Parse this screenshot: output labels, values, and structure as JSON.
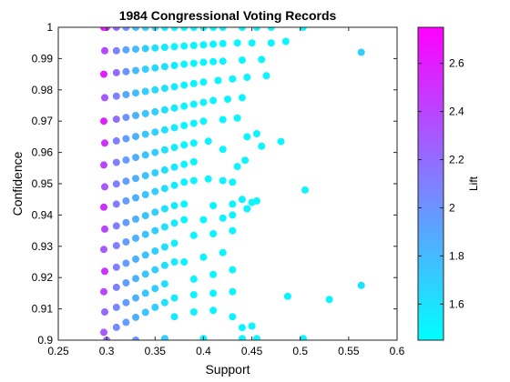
{
  "chart_data": {
    "type": "scatter",
    "title": "1984 Congressional Voting Records",
    "xlabel": "Support",
    "ylabel": "Confidence",
    "xlim": [
      0.25,
      0.6
    ],
    "ylim": [
      0.9,
      1.0
    ],
    "xticks": [
      "0.25",
      "0.3",
      "0.35",
      "0.4",
      "0.45",
      "0.5",
      "0.55",
      "0.6"
    ],
    "yticks": [
      "0.9",
      "0.91",
      "0.92",
      "0.93",
      "0.94",
      "0.95",
      "0.96",
      "0.97",
      "0.98",
      "0.99",
      "1"
    ],
    "grid": false,
    "colorbar": {
      "label": "Lift",
      "range": [
        1.45,
        2.75
      ],
      "ticks": [
        "1.6",
        "1.8",
        "2",
        "2.2",
        "2.4",
        "2.6"
      ],
      "colormap": "cool",
      "color_low": "#00ffff",
      "color_high": "#ff00ff"
    },
    "points": [
      {
        "x": 0.297,
        "y": 1.0,
        "lift": 2.7
      },
      {
        "x": 0.3,
        "y": 1.0,
        "lift": 2.5
      },
      {
        "x": 0.31,
        "y": 1.0,
        "lift": 2.2
      },
      {
        "x": 0.32,
        "y": 1.0,
        "lift": 2.0
      },
      {
        "x": 0.33,
        "y": 1.0,
        "lift": 1.8
      },
      {
        "x": 0.34,
        "y": 1.0,
        "lift": 1.7
      },
      {
        "x": 0.35,
        "y": 1.0,
        "lift": 1.6
      },
      {
        "x": 0.36,
        "y": 1.0,
        "lift": 1.55
      },
      {
        "x": 0.37,
        "y": 1.0,
        "lift": 1.5
      },
      {
        "x": 0.38,
        "y": 1.0,
        "lift": 1.5
      },
      {
        "x": 0.39,
        "y": 1.0,
        "lift": 1.5
      },
      {
        "x": 0.4,
        "y": 1.0,
        "lift": 1.5
      },
      {
        "x": 0.41,
        "y": 1.0,
        "lift": 1.5
      },
      {
        "x": 0.42,
        "y": 1.0,
        "lift": 1.5
      },
      {
        "x": 0.44,
        "y": 1.0,
        "lift": 1.5
      },
      {
        "x": 0.455,
        "y": 1.0,
        "lift": 1.5
      },
      {
        "x": 0.47,
        "y": 1.0,
        "lift": 1.5
      },
      {
        "x": 0.503,
        "y": 1.0,
        "lift": 1.5
      },
      {
        "x": 0.298,
        "y": 0.9925,
        "lift": 2.4
      },
      {
        "x": 0.31,
        "y": 0.9925,
        "lift": 2.1
      },
      {
        "x": 0.32,
        "y": 0.9928,
        "lift": 1.9
      },
      {
        "x": 0.33,
        "y": 0.993,
        "lift": 1.8
      },
      {
        "x": 0.34,
        "y": 0.9932,
        "lift": 1.7
      },
      {
        "x": 0.35,
        "y": 0.9934,
        "lift": 1.6
      },
      {
        "x": 0.36,
        "y": 0.9936,
        "lift": 1.55
      },
      {
        "x": 0.37,
        "y": 0.9938,
        "lift": 1.5
      },
      {
        "x": 0.38,
        "y": 0.994,
        "lift": 1.5
      },
      {
        "x": 0.39,
        "y": 0.9942,
        "lift": 1.5
      },
      {
        "x": 0.4,
        "y": 0.9944,
        "lift": 1.5
      },
      {
        "x": 0.41,
        "y": 0.9946,
        "lift": 1.5
      },
      {
        "x": 0.42,
        "y": 0.9948,
        "lift": 1.5
      },
      {
        "x": 0.435,
        "y": 0.995,
        "lift": 1.5
      },
      {
        "x": 0.45,
        "y": 0.995,
        "lift": 1.5
      },
      {
        "x": 0.47,
        "y": 0.995,
        "lift": 1.5
      },
      {
        "x": 0.485,
        "y": 0.9955,
        "lift": 1.5
      },
      {
        "x": 0.563,
        "y": 0.992,
        "lift": 1.7
      },
      {
        "x": 0.297,
        "y": 0.985,
        "lift": 2.6
      },
      {
        "x": 0.31,
        "y": 0.9855,
        "lift": 2.2
      },
      {
        "x": 0.32,
        "y": 0.9858,
        "lift": 2.0
      },
      {
        "x": 0.33,
        "y": 0.9862,
        "lift": 1.8
      },
      {
        "x": 0.34,
        "y": 0.9866,
        "lift": 1.7
      },
      {
        "x": 0.35,
        "y": 0.987,
        "lift": 1.65
      },
      {
        "x": 0.36,
        "y": 0.9874,
        "lift": 1.6
      },
      {
        "x": 0.37,
        "y": 0.9878,
        "lift": 1.55
      },
      {
        "x": 0.38,
        "y": 0.9882,
        "lift": 1.5
      },
      {
        "x": 0.39,
        "y": 0.9885,
        "lift": 1.5
      },
      {
        "x": 0.4,
        "y": 0.9888,
        "lift": 1.5
      },
      {
        "x": 0.41,
        "y": 0.989,
        "lift": 1.5
      },
      {
        "x": 0.42,
        "y": 0.9892,
        "lift": 1.5
      },
      {
        "x": 0.44,
        "y": 0.9895,
        "lift": 1.5
      },
      {
        "x": 0.46,
        "y": 0.9897,
        "lift": 1.5
      },
      {
        "x": 0.298,
        "y": 0.9775,
        "lift": 2.3
      },
      {
        "x": 0.31,
        "y": 0.978,
        "lift": 2.1
      },
      {
        "x": 0.32,
        "y": 0.9785,
        "lift": 1.9
      },
      {
        "x": 0.33,
        "y": 0.979,
        "lift": 1.8
      },
      {
        "x": 0.34,
        "y": 0.9795,
        "lift": 1.7
      },
      {
        "x": 0.35,
        "y": 0.98,
        "lift": 1.65
      },
      {
        "x": 0.36,
        "y": 0.9805,
        "lift": 1.6
      },
      {
        "x": 0.37,
        "y": 0.981,
        "lift": 1.55
      },
      {
        "x": 0.38,
        "y": 0.9815,
        "lift": 1.5
      },
      {
        "x": 0.39,
        "y": 0.982,
        "lift": 1.5
      },
      {
        "x": 0.4,
        "y": 0.9825,
        "lift": 1.5
      },
      {
        "x": 0.415,
        "y": 0.983,
        "lift": 1.5
      },
      {
        "x": 0.43,
        "y": 0.9835,
        "lift": 1.5
      },
      {
        "x": 0.445,
        "y": 0.984,
        "lift": 1.5
      },
      {
        "x": 0.465,
        "y": 0.9845,
        "lift": 1.5
      },
      {
        "x": 0.297,
        "y": 0.97,
        "lift": 2.6
      },
      {
        "x": 0.31,
        "y": 0.9706,
        "lift": 2.2
      },
      {
        "x": 0.32,
        "y": 0.9712,
        "lift": 2.0
      },
      {
        "x": 0.33,
        "y": 0.9718,
        "lift": 1.85
      },
      {
        "x": 0.34,
        "y": 0.9724,
        "lift": 1.75
      },
      {
        "x": 0.35,
        "y": 0.973,
        "lift": 1.7
      },
      {
        "x": 0.36,
        "y": 0.9736,
        "lift": 1.6
      },
      {
        "x": 0.37,
        "y": 0.9742,
        "lift": 1.55
      },
      {
        "x": 0.38,
        "y": 0.9748,
        "lift": 1.5
      },
      {
        "x": 0.39,
        "y": 0.9754,
        "lift": 1.5
      },
      {
        "x": 0.4,
        "y": 0.976,
        "lift": 1.5
      },
      {
        "x": 0.41,
        "y": 0.9766,
        "lift": 1.5
      },
      {
        "x": 0.425,
        "y": 0.977,
        "lift": 1.5
      },
      {
        "x": 0.44,
        "y": 0.9775,
        "lift": 1.5
      },
      {
        "x": 0.298,
        "y": 0.963,
        "lift": 2.5
      },
      {
        "x": 0.31,
        "y": 0.9637,
        "lift": 2.1
      },
      {
        "x": 0.32,
        "y": 0.9644,
        "lift": 1.95
      },
      {
        "x": 0.33,
        "y": 0.9651,
        "lift": 1.85
      },
      {
        "x": 0.34,
        "y": 0.9658,
        "lift": 1.75
      },
      {
        "x": 0.35,
        "y": 0.9665,
        "lift": 1.7
      },
      {
        "x": 0.36,
        "y": 0.9672,
        "lift": 1.6
      },
      {
        "x": 0.37,
        "y": 0.9679,
        "lift": 1.55
      },
      {
        "x": 0.38,
        "y": 0.9686,
        "lift": 1.5
      },
      {
        "x": 0.39,
        "y": 0.9693,
        "lift": 1.5
      },
      {
        "x": 0.4,
        "y": 0.97,
        "lift": 1.5
      },
      {
        "x": 0.42,
        "y": 0.9705,
        "lift": 1.5
      },
      {
        "x": 0.435,
        "y": 0.971,
        "lift": 1.5
      },
      {
        "x": 0.455,
        "y": 0.966,
        "lift": 1.5
      },
      {
        "x": 0.445,
        "y": 0.965,
        "lift": 1.5
      },
      {
        "x": 0.46,
        "y": 0.962,
        "lift": 1.5
      },
      {
        "x": 0.297,
        "y": 0.956,
        "lift": 2.4
      },
      {
        "x": 0.31,
        "y": 0.9568,
        "lift": 2.1
      },
      {
        "x": 0.32,
        "y": 0.9576,
        "lift": 1.95
      },
      {
        "x": 0.33,
        "y": 0.9584,
        "lift": 1.85
      },
      {
        "x": 0.34,
        "y": 0.9592,
        "lift": 1.75
      },
      {
        "x": 0.35,
        "y": 0.96,
        "lift": 1.7
      },
      {
        "x": 0.36,
        "y": 0.9608,
        "lift": 1.6
      },
      {
        "x": 0.37,
        "y": 0.9616,
        "lift": 1.55
      },
      {
        "x": 0.38,
        "y": 0.9624,
        "lift": 1.5
      },
      {
        "x": 0.39,
        "y": 0.963,
        "lift": 1.5
      },
      {
        "x": 0.405,
        "y": 0.9636,
        "lift": 1.5
      },
      {
        "x": 0.42,
        "y": 0.961,
        "lift": 1.5
      },
      {
        "x": 0.435,
        "y": 0.9555,
        "lift": 1.5
      },
      {
        "x": 0.443,
        "y": 0.9575,
        "lift": 1.5
      },
      {
        "x": 0.48,
        "y": 0.9635,
        "lift": 1.5
      },
      {
        "x": 0.298,
        "y": 0.949,
        "lift": 2.3
      },
      {
        "x": 0.31,
        "y": 0.9499,
        "lift": 2.1
      },
      {
        "x": 0.32,
        "y": 0.9508,
        "lift": 1.95
      },
      {
        "x": 0.33,
        "y": 0.9517,
        "lift": 1.85
      },
      {
        "x": 0.34,
        "y": 0.9526,
        "lift": 1.75
      },
      {
        "x": 0.35,
        "y": 0.9535,
        "lift": 1.7
      },
      {
        "x": 0.36,
        "y": 0.9544,
        "lift": 1.6
      },
      {
        "x": 0.37,
        "y": 0.9553,
        "lift": 1.55
      },
      {
        "x": 0.38,
        "y": 0.9562,
        "lift": 1.5
      },
      {
        "x": 0.39,
        "y": 0.957,
        "lift": 1.5
      },
      {
        "x": 0.405,
        "y": 0.9515,
        "lift": 1.5
      },
      {
        "x": 0.42,
        "y": 0.951,
        "lift": 1.5
      },
      {
        "x": 0.43,
        "y": 0.9505,
        "lift": 1.5
      },
      {
        "x": 0.297,
        "y": 0.9425,
        "lift": 2.5
      },
      {
        "x": 0.31,
        "y": 0.9435,
        "lift": 2.1
      },
      {
        "x": 0.32,
        "y": 0.9445,
        "lift": 1.95
      },
      {
        "x": 0.33,
        "y": 0.9455,
        "lift": 1.85
      },
      {
        "x": 0.34,
        "y": 0.9465,
        "lift": 1.75
      },
      {
        "x": 0.35,
        "y": 0.9475,
        "lift": 1.7
      },
      {
        "x": 0.36,
        "y": 0.9485,
        "lift": 1.6
      },
      {
        "x": 0.37,
        "y": 0.9495,
        "lift": 1.55
      },
      {
        "x": 0.38,
        "y": 0.9505,
        "lift": 1.5
      },
      {
        "x": 0.39,
        "y": 0.951,
        "lift": 1.5
      },
      {
        "x": 0.41,
        "y": 0.943,
        "lift": 1.5
      },
      {
        "x": 0.43,
        "y": 0.9435,
        "lift": 1.5
      },
      {
        "x": 0.44,
        "y": 0.945,
        "lift": 1.5
      },
      {
        "x": 0.45,
        "y": 0.944,
        "lift": 1.5
      },
      {
        "x": 0.455,
        "y": 0.9445,
        "lift": 1.5
      },
      {
        "x": 0.505,
        "y": 0.948,
        "lift": 1.5
      },
      {
        "x": 0.298,
        "y": 0.9355,
        "lift": 2.4
      },
      {
        "x": 0.31,
        "y": 0.9365,
        "lift": 2.1
      },
      {
        "x": 0.32,
        "y": 0.9376,
        "lift": 1.95
      },
      {
        "x": 0.33,
        "y": 0.9387,
        "lift": 1.85
      },
      {
        "x": 0.34,
        "y": 0.9398,
        "lift": 1.75
      },
      {
        "x": 0.35,
        "y": 0.9409,
        "lift": 1.7
      },
      {
        "x": 0.36,
        "y": 0.942,
        "lift": 1.6
      },
      {
        "x": 0.37,
        "y": 0.943,
        "lift": 1.55
      },
      {
        "x": 0.38,
        "y": 0.9435,
        "lift": 1.5
      },
      {
        "x": 0.4,
        "y": 0.9385,
        "lift": 1.5
      },
      {
        "x": 0.42,
        "y": 0.939,
        "lift": 1.5
      },
      {
        "x": 0.43,
        "y": 0.94,
        "lift": 1.5
      },
      {
        "x": 0.445,
        "y": 0.942,
        "lift": 1.5
      },
      {
        "x": 0.297,
        "y": 0.929,
        "lift": 2.3
      },
      {
        "x": 0.31,
        "y": 0.9302,
        "lift": 2.1
      },
      {
        "x": 0.32,
        "y": 0.9314,
        "lift": 1.95
      },
      {
        "x": 0.33,
        "y": 0.9326,
        "lift": 1.85
      },
      {
        "x": 0.34,
        "y": 0.9338,
        "lift": 1.75
      },
      {
        "x": 0.35,
        "y": 0.935,
        "lift": 1.7
      },
      {
        "x": 0.36,
        "y": 0.9362,
        "lift": 1.6
      },
      {
        "x": 0.37,
        "y": 0.9374,
        "lift": 1.55
      },
      {
        "x": 0.38,
        "y": 0.9385,
        "lift": 1.5
      },
      {
        "x": 0.39,
        "y": 0.9335,
        "lift": 1.5
      },
      {
        "x": 0.41,
        "y": 0.934,
        "lift": 1.5
      },
      {
        "x": 0.43,
        "y": 0.935,
        "lift": 1.5
      },
      {
        "x": 0.298,
        "y": 0.922,
        "lift": 2.5
      },
      {
        "x": 0.31,
        "y": 0.9233,
        "lift": 2.1
      },
      {
        "x": 0.32,
        "y": 0.9246,
        "lift": 1.95
      },
      {
        "x": 0.33,
        "y": 0.9259,
        "lift": 1.85
      },
      {
        "x": 0.34,
        "y": 0.9272,
        "lift": 1.75
      },
      {
        "x": 0.35,
        "y": 0.9285,
        "lift": 1.7
      },
      {
        "x": 0.36,
        "y": 0.9298,
        "lift": 1.6
      },
      {
        "x": 0.37,
        "y": 0.931,
        "lift": 1.55
      },
      {
        "x": 0.38,
        "y": 0.925,
        "lift": 1.5
      },
      {
        "x": 0.4,
        "y": 0.9265,
        "lift": 1.5
      },
      {
        "x": 0.42,
        "y": 0.928,
        "lift": 1.5
      },
      {
        "x": 0.297,
        "y": 0.9155,
        "lift": 2.4
      },
      {
        "x": 0.31,
        "y": 0.9169,
        "lift": 2.1
      },
      {
        "x": 0.32,
        "y": 0.9183,
        "lift": 1.95
      },
      {
        "x": 0.33,
        "y": 0.9197,
        "lift": 1.85
      },
      {
        "x": 0.34,
        "y": 0.9211,
        "lift": 1.75
      },
      {
        "x": 0.35,
        "y": 0.9225,
        "lift": 1.7
      },
      {
        "x": 0.36,
        "y": 0.9239,
        "lift": 1.6
      },
      {
        "x": 0.37,
        "y": 0.925,
        "lift": 1.55
      },
      {
        "x": 0.39,
        "y": 0.9195,
        "lift": 1.5
      },
      {
        "x": 0.41,
        "y": 0.921,
        "lift": 1.5
      },
      {
        "x": 0.43,
        "y": 0.9225,
        "lift": 1.5
      },
      {
        "x": 0.298,
        "y": 0.909,
        "lift": 2.2
      },
      {
        "x": 0.31,
        "y": 0.9105,
        "lift": 2.05
      },
      {
        "x": 0.32,
        "y": 0.912,
        "lift": 1.95
      },
      {
        "x": 0.33,
        "y": 0.9135,
        "lift": 1.85
      },
      {
        "x": 0.34,
        "y": 0.915,
        "lift": 1.75
      },
      {
        "x": 0.35,
        "y": 0.9165,
        "lift": 1.7
      },
      {
        "x": 0.36,
        "y": 0.918,
        "lift": 1.6
      },
      {
        "x": 0.37,
        "y": 0.9135,
        "lift": 1.55
      },
      {
        "x": 0.39,
        "y": 0.9145,
        "lift": 1.5
      },
      {
        "x": 0.41,
        "y": 0.915,
        "lift": 1.5
      },
      {
        "x": 0.43,
        "y": 0.9155,
        "lift": 1.5
      },
      {
        "x": 0.487,
        "y": 0.914,
        "lift": 1.5
      },
      {
        "x": 0.53,
        "y": 0.913,
        "lift": 1.5
      },
      {
        "x": 0.563,
        "y": 0.9175,
        "lift": 1.6
      },
      {
        "x": 0.297,
        "y": 0.9025,
        "lift": 2.3
      },
      {
        "x": 0.31,
        "y": 0.9041,
        "lift": 2.05
      },
      {
        "x": 0.32,
        "y": 0.9057,
        "lift": 1.95
      },
      {
        "x": 0.33,
        "y": 0.9073,
        "lift": 1.85
      },
      {
        "x": 0.34,
        "y": 0.9089,
        "lift": 1.75
      },
      {
        "x": 0.35,
        "y": 0.9105,
        "lift": 1.7
      },
      {
        "x": 0.36,
        "y": 0.912,
        "lift": 1.6
      },
      {
        "x": 0.37,
        "y": 0.9075,
        "lift": 1.55
      },
      {
        "x": 0.39,
        "y": 0.909,
        "lift": 1.5
      },
      {
        "x": 0.41,
        "y": 0.9095,
        "lift": 1.5
      },
      {
        "x": 0.43,
        "y": 0.9075,
        "lift": 1.5
      },
      {
        "x": 0.44,
        "y": 0.904,
        "lift": 1.5
      },
      {
        "x": 0.45,
        "y": 0.9045,
        "lift": 1.5
      },
      {
        "x": 0.3,
        "y": 0.9,
        "lift": 2.2
      },
      {
        "x": 0.33,
        "y": 0.9,
        "lift": 2.0
      },
      {
        "x": 0.36,
        "y": 0.9005,
        "lift": 1.7
      },
      {
        "x": 0.4,
        "y": 0.9005,
        "lift": 1.5
      },
      {
        "x": 0.44,
        "y": 0.9005,
        "lift": 1.5
      },
      {
        "x": 0.455,
        "y": 0.9005,
        "lift": 1.5
      },
      {
        "x": 0.503,
        "y": 0.9005,
        "lift": 1.5
      }
    ]
  }
}
